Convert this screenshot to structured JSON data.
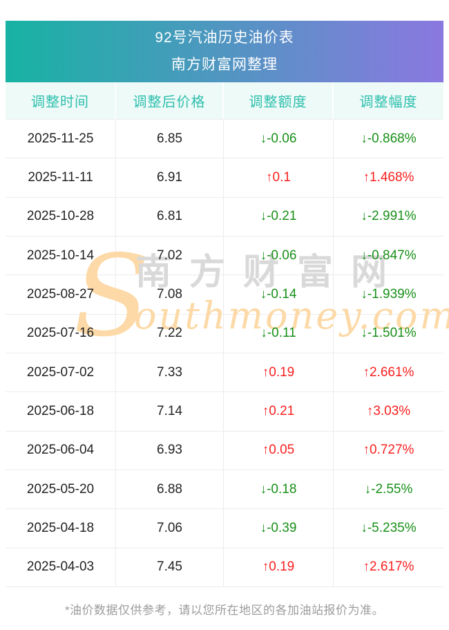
{
  "header": {
    "title": "92号汽油历史油价表",
    "subtitle": "南方财富网整理"
  },
  "table": {
    "columns": [
      "调整时间",
      "调整后价格",
      "调整额度",
      "调整幅度"
    ],
    "arrows": {
      "up": "↑",
      "down": "↓"
    },
    "rows": [
      {
        "date": "2025-11-25",
        "price": "6.85",
        "change": "-0.06",
        "pct": "-0.868%",
        "dir": "down"
      },
      {
        "date": "2025-11-11",
        "price": "6.91",
        "change": "0.1",
        "pct": "1.468%",
        "dir": "up"
      },
      {
        "date": "2025-10-28",
        "price": "6.81",
        "change": "-0.21",
        "pct": "-2.991%",
        "dir": "down"
      },
      {
        "date": "2025-10-14",
        "price": "7.02",
        "change": "-0.06",
        "pct": "-0.847%",
        "dir": "down"
      },
      {
        "date": "2025-08-27",
        "price": "7.08",
        "change": "-0.14",
        "pct": "-1.939%",
        "dir": "down"
      },
      {
        "date": "2025-07-16",
        "price": "7.22",
        "change": "-0.11",
        "pct": "-1.501%",
        "dir": "down"
      },
      {
        "date": "2025-07-02",
        "price": "7.33",
        "change": "0.19",
        "pct": "2.661%",
        "dir": "up"
      },
      {
        "date": "2025-06-18",
        "price": "7.14",
        "change": "0.21",
        "pct": "3.03%",
        "dir": "up"
      },
      {
        "date": "2025-06-04",
        "price": "6.93",
        "change": "0.05",
        "pct": "0.727%",
        "dir": "up"
      },
      {
        "date": "2025-05-20",
        "price": "6.88",
        "change": "-0.18",
        "pct": "-2.55%",
        "dir": "down"
      },
      {
        "date": "2025-04-18",
        "price": "7.06",
        "change": "-0.39",
        "pct": "-5.235%",
        "dir": "down"
      },
      {
        "date": "2025-04-03",
        "price": "7.45",
        "change": "0.19",
        "pct": "2.617%",
        "dir": "up"
      }
    ]
  },
  "watermark": {
    "initial": "S",
    "cn": "南方财富网",
    "en": "outhmoney.com"
  },
  "footer": {
    "note": "*油价数据仅供参考，请以您所在地区的各加油站报价为准。"
  },
  "colors": {
    "banner_gradient_start": "#17b3a3",
    "banner_gradient_end": "#8b78e0",
    "table_header_bg": "#edfaf7",
    "table_header_text": "#2fbfae",
    "up_red": "#fa1e1e",
    "down_green": "#178f17",
    "border": "#ececec",
    "footer_text": "#9c9c9c",
    "watermark_orange": "#fcd9a6",
    "watermark_gray": "#d9d9d9"
  }
}
